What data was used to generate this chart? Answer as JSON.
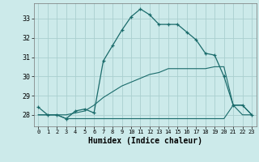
{
  "xlabel": "Humidex (Indice chaleur)",
  "bg_color": "#cceaea",
  "grid_color": "#aacfcf",
  "line_color": "#1a6b6b",
  "xlim": [
    -0.5,
    23.5
  ],
  "ylim": [
    27.4,
    33.8
  ],
  "xticks": [
    0,
    1,
    2,
    3,
    4,
    5,
    6,
    7,
    8,
    9,
    10,
    11,
    12,
    13,
    14,
    15,
    16,
    17,
    18,
    19,
    20,
    21,
    22,
    23
  ],
  "yticks": [
    28,
    29,
    30,
    31,
    32,
    33
  ],
  "line1_x": [
    0,
    1,
    2,
    3,
    4,
    5,
    6,
    7,
    8,
    9,
    10,
    11,
    12,
    13,
    14,
    15,
    16,
    17,
    18,
    19,
    20,
    21,
    22,
    23
  ],
  "line1_y": [
    28.4,
    28.0,
    28.0,
    27.8,
    28.2,
    28.3,
    28.1,
    30.8,
    31.6,
    32.4,
    33.1,
    33.5,
    33.2,
    32.7,
    32.7,
    32.7,
    32.3,
    31.9,
    31.2,
    31.1,
    30.0,
    28.5,
    28.5,
    28.0
  ],
  "line2_x": [
    0,
    1,
    2,
    3,
    4,
    5,
    6,
    7,
    8,
    9,
    10,
    11,
    12,
    13,
    14,
    15,
    16,
    17,
    18,
    19,
    20,
    21,
    22,
    23
  ],
  "line2_y": [
    28.0,
    28.0,
    28.0,
    27.8,
    27.8,
    27.8,
    27.8,
    27.8,
    27.8,
    27.8,
    27.8,
    27.8,
    27.8,
    27.8,
    27.8,
    27.8,
    27.8,
    27.8,
    27.8,
    27.8,
    27.8,
    28.5,
    28.0,
    28.0
  ],
  "line3_x": [
    0,
    1,
    2,
    3,
    4,
    5,
    6,
    7,
    8,
    9,
    10,
    11,
    12,
    13,
    14,
    15,
    16,
    17,
    18,
    19,
    20,
    21,
    22,
    23
  ],
  "line3_y": [
    28.0,
    28.0,
    28.0,
    28.0,
    28.1,
    28.2,
    28.5,
    28.9,
    29.2,
    29.5,
    29.7,
    29.9,
    30.1,
    30.2,
    30.4,
    30.4,
    30.4,
    30.4,
    30.4,
    30.5,
    30.5,
    28.5,
    28.5,
    28.0
  ]
}
